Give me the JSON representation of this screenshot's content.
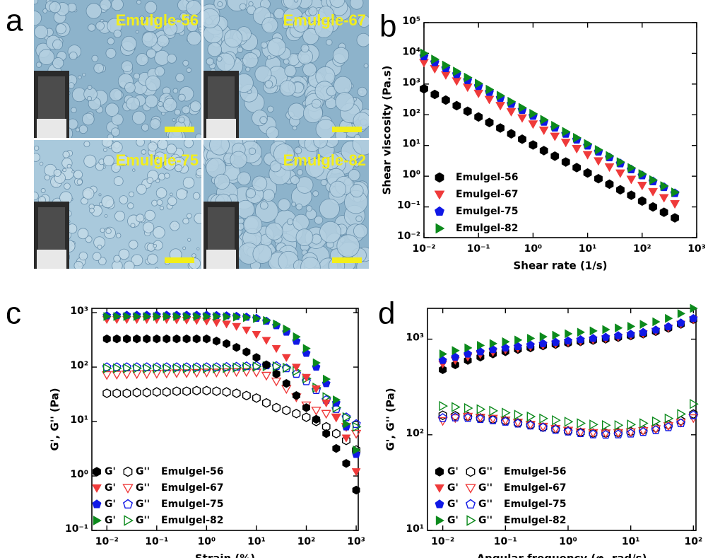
{
  "figure_panel_a": {
    "panel_label": "a",
    "images": [
      {
        "label": "Emulgle-56"
      },
      {
        "label": "Emulgle-67"
      },
      {
        "label": "Emulgle-75"
      },
      {
        "label": "Emulgle-82"
      }
    ]
  },
  "chart_data": [
    {
      "type": "scatter",
      "panel_label": "b",
      "x_label": "Shear rate (1/s)",
      "y_label": "Shear viscosity (Pa.s)",
      "log_x": true,
      "log_y": true,
      "xlim": [
        0.01,
        1000
      ],
      "ylim": [
        0.01,
        100000
      ],
      "xticks": [
        {
          "value": 0.01,
          "label": "10⁻²"
        },
        {
          "value": 0.1,
          "label": "10⁻¹"
        },
        {
          "value": 1,
          "label": "10⁰"
        },
        {
          "value": 10,
          "label": "10¹"
        },
        {
          "value": 100,
          "label": "10²"
        },
        {
          "value": 1000,
          "label": "10³"
        }
      ],
      "yticks": [
        {
          "value": 0.01,
          "label": "10⁻²"
        },
        {
          "value": 0.1,
          "label": "10⁻¹"
        },
        {
          "value": 1,
          "label": "10⁰"
        },
        {
          "value": 10,
          "label": "10¹"
        },
        {
          "value": 100,
          "label": "10²"
        },
        {
          "value": 1000,
          "label": "10³"
        },
        {
          "value": 10000,
          "label": "10⁴"
        },
        {
          "value": 100000,
          "label": "10⁵"
        }
      ],
      "x": [
        0.01,
        0.0158,
        0.0251,
        0.0398,
        0.0631,
        0.1,
        0.158,
        0.251,
        0.398,
        0.631,
        1,
        1.58,
        2.51,
        3.98,
        6.31,
        10,
        15.8,
        25.1,
        39.8,
        63.1,
        100,
        158,
        251,
        398
      ],
      "series": [
        {
          "name": "Emulgel-56",
          "color": "#000000",
          "marker": "hexagon",
          "values": [
            700,
            459,
            301,
            198,
            130,
            85,
            56,
            37,
            24,
            16,
            10.4,
            6.8,
            4.5,
            2.9,
            1.9,
            1.27,
            0.83,
            0.55,
            0.36,
            0.24,
            0.155,
            0.1,
            0.067,
            0.044
          ]
        },
        {
          "name": "Emulgel-67",
          "color": "#ef3a3a",
          "marker": "triangle-down",
          "values": [
            5000,
            3150,
            1990,
            1260,
            790,
            500,
            315,
            199,
            126,
            79,
            50,
            31.5,
            19.9,
            12.6,
            7.9,
            5,
            3.15,
            1.99,
            1.26,
            0.79,
            0.5,
            0.315,
            0.199,
            0.126
          ]
        },
        {
          "name": "Emulgel-75",
          "color": "#1018e6",
          "marker": "pentagon",
          "values": [
            8000,
            5120,
            3277,
            2097,
            1342,
            859,
            550,
            352,
            225,
            144,
            92,
            59,
            38,
            24,
            15.5,
            9.9,
            6.3,
            4.1,
            2.6,
            1.66,
            1.06,
            0.68,
            0.44,
            0.28
          ]
        },
        {
          "name": "Emulgel-82",
          "color": "#0c8a1c",
          "marker": "triangle-right",
          "values": [
            10000,
            6360,
            4045,
            2573,
            1636,
            1041,
            662,
            421,
            268,
            170,
            108,
            69,
            44,
            28,
            17.8,
            11.3,
            7.2,
            4.6,
            2.9,
            1.86,
            1.18,
            0.75,
            0.48,
            0.3
          ]
        }
      ]
    },
    {
      "type": "modulus",
      "panel_label": "c",
      "x_label": "Strain (%)",
      "y_label": "G', G'' (Pa)",
      "log_x": true,
      "log_y": true,
      "legend_labels": [
        "G'",
        "G''"
      ],
      "xlim": [
        0.005,
        1100
      ],
      "ylim": [
        0.1,
        1200
      ],
      "xticks": [
        {
          "value": 0.01,
          "label": "10⁻²"
        },
        {
          "value": 0.1,
          "label": "10⁻¹"
        },
        {
          "value": 1,
          "label": "10⁰"
        },
        {
          "value": 10,
          "label": "10¹"
        },
        {
          "value": 100,
          "label": "10²"
        },
        {
          "value": 1000,
          "label": "10³"
        }
      ],
      "yticks": [
        {
          "value": 0.1,
          "label": "10⁻¹"
        },
        {
          "value": 1,
          "label": "10⁰"
        },
        {
          "value": 10,
          "label": "10¹"
        },
        {
          "value": 100,
          "label": "10²"
        },
        {
          "value": 1000,
          "label": "10³"
        }
      ],
      "x": [
        0.01,
        0.0158,
        0.0251,
        0.0398,
        0.0631,
        0.1,
        0.158,
        0.251,
        0.398,
        0.631,
        1,
        1.58,
        2.51,
        3.98,
        6.31,
        10,
        15.8,
        25.1,
        39.8,
        63.1,
        100,
        158,
        251,
        398,
        631,
        1000
      ],
      "series": [
        {
          "name": "Emulgel-56",
          "color": "#000000",
          "marker": "hexagon",
          "storage": [
            330,
            330,
            330,
            330,
            330,
            330,
            330,
            330,
            330,
            330,
            330,
            300,
            270,
            230,
            190,
            150,
            110,
            75,
            50,
            30,
            18,
            11,
            6,
            3.2,
            1.7,
            0.55
          ],
          "loss": [
            33,
            33,
            33,
            34,
            34,
            35,
            35,
            36,
            36,
            37,
            37,
            36,
            35,
            33,
            30,
            27,
            22,
            18,
            16,
            14,
            12,
            10,
            8,
            6,
            4.5,
            3
          ]
        },
        {
          "name": "Emulgel-67",
          "color": "#ef3a3a",
          "marker": "triangle-down",
          "storage": [
            750,
            750,
            750,
            750,
            750,
            750,
            750,
            740,
            730,
            720,
            700,
            660,
            620,
            560,
            480,
            400,
            310,
            220,
            150,
            100,
            65,
            40,
            22,
            12,
            5,
            1.2
          ],
          "loss": [
            72,
            73,
            74,
            75,
            75,
            76,
            77,
            78,
            78,
            79,
            80,
            80,
            81,
            82,
            82,
            80,
            70,
            55,
            40,
            28,
            20,
            16,
            14,
            12,
            8,
            6
          ]
        },
        {
          "name": "Emulgel-75",
          "color": "#1018e6",
          "marker": "pentagon",
          "storage": [
            880,
            890,
            900,
            900,
            900,
            900,
            900,
            900,
            900,
            900,
            900,
            890,
            880,
            860,
            830,
            790,
            700,
            580,
            440,
            300,
            180,
            100,
            50,
            22,
            8,
            2.5
          ],
          "loss": [
            100,
            100,
            100,
            100,
            100,
            100,
            100,
            100,
            100,
            100,
            100,
            100,
            101,
            102,
            104,
            106,
            108,
            105,
            95,
            75,
            55,
            38,
            25,
            17,
            12,
            9
          ]
        },
        {
          "name": "Emulgel-82",
          "color": "#0c8a1c",
          "marker": "triangle-right",
          "storage": [
            850,
            850,
            850,
            850,
            850,
            850,
            850,
            850,
            850,
            850,
            850,
            850,
            840,
            830,
            810,
            780,
            720,
            620,
            500,
            360,
            220,
            120,
            60,
            25,
            9,
            3
          ],
          "loss": [
            95,
            95,
            95,
            95,
            95,
            95,
            95,
            95,
            95,
            95,
            95,
            95,
            96,
            98,
            100,
            102,
            104,
            103,
            97,
            85,
            62,
            42,
            28,
            18,
            12,
            8
          ]
        }
      ]
    },
    {
      "type": "modulus",
      "panel_label": "d",
      "x_label": "Angular frequency (φ, rad/s)",
      "y_label": "G', G'' (Pa)",
      "log_x": true,
      "log_y": true,
      "legend_labels": [
        "G'",
        "G''"
      ],
      "xlim": [
        0.0057,
        110
      ],
      "ylim": [
        10,
        2100
      ],
      "xticks": [
        {
          "value": 0.01,
          "label": "10⁻²"
        },
        {
          "value": 0.1,
          "label": "10⁻¹"
        },
        {
          "value": 1,
          "label": "10⁰"
        },
        {
          "value": 10,
          "label": "10¹"
        },
        {
          "value": 100,
          "label": "10²"
        }
      ],
      "yticks": [
        {
          "value": 10,
          "label": "10¹"
        },
        {
          "value": 100,
          "label": "10²"
        },
        {
          "value": 1000,
          "label": "10³"
        }
      ],
      "x": [
        0.01,
        0.0158,
        0.0251,
        0.0398,
        0.0631,
        0.1,
        0.158,
        0.251,
        0.398,
        0.631,
        1,
        1.58,
        2.51,
        3.98,
        6.31,
        10,
        15.8,
        25.1,
        39.8,
        63.1,
        100
      ],
      "series": [
        {
          "name": "Emulgel-56",
          "color": "#000000",
          "marker": "hexagon",
          "storage": [
            480,
            540,
            600,
            650,
            700,
            740,
            780,
            810,
            850,
            880,
            910,
            940,
            970,
            1000,
            1040,
            1080,
            1130,
            1200,
            1300,
            1430,
            1600
          ],
          "loss": [
            160,
            158,
            155,
            150,
            145,
            140,
            133,
            127,
            120,
            115,
            110,
            106,
            104,
            104,
            105,
            108,
            112,
            118,
            127,
            140,
            165
          ]
        },
        {
          "name": "Emulgel-67",
          "color": "#ef3a3a",
          "marker": "triangle-down",
          "storage": [
            550,
            600,
            650,
            690,
            730,
            770,
            800,
            830,
            860,
            890,
            920,
            950,
            980,
            1010,
            1050,
            1090,
            1140,
            1210,
            1310,
            1440,
            1600
          ],
          "loss": [
            140,
            150,
            155,
            152,
            148,
            142,
            135,
            128,
            122,
            116,
            111,
            107,
            105,
            104,
            105,
            107,
            110,
            115,
            124,
            135,
            150
          ]
        },
        {
          "name": "Emulgel-75",
          "color": "#1018e6",
          "marker": "pentagon",
          "storage": [
            600,
            650,
            700,
            740,
            780,
            810,
            840,
            870,
            900,
            930,
            960,
            990,
            1020,
            1050,
            1090,
            1130,
            1180,
            1250,
            1350,
            1480,
            1650
          ],
          "loss": [
            150,
            152,
            150,
            146,
            142,
            137,
            131,
            125,
            119,
            113,
            108,
            104,
            101,
            100,
            101,
            103,
            107,
            112,
            120,
            132,
            160
          ]
        },
        {
          "name": "Emulgel-82",
          "color": "#0c8a1c",
          "marker": "triangle-right",
          "storage": [
            700,
            760,
            810,
            860,
            900,
            940,
            980,
            1020,
            1060,
            1100,
            1140,
            1180,
            1220,
            1260,
            1310,
            1360,
            1430,
            1520,
            1650,
            1850,
            2100
          ],
          "loss": [
            200,
            195,
            190,
            185,
            178,
            170,
            162,
            155,
            148,
            142,
            137,
            132,
            128,
            126,
            126,
            128,
            132,
            138,
            148,
            165,
            210
          ]
        }
      ]
    }
  ]
}
